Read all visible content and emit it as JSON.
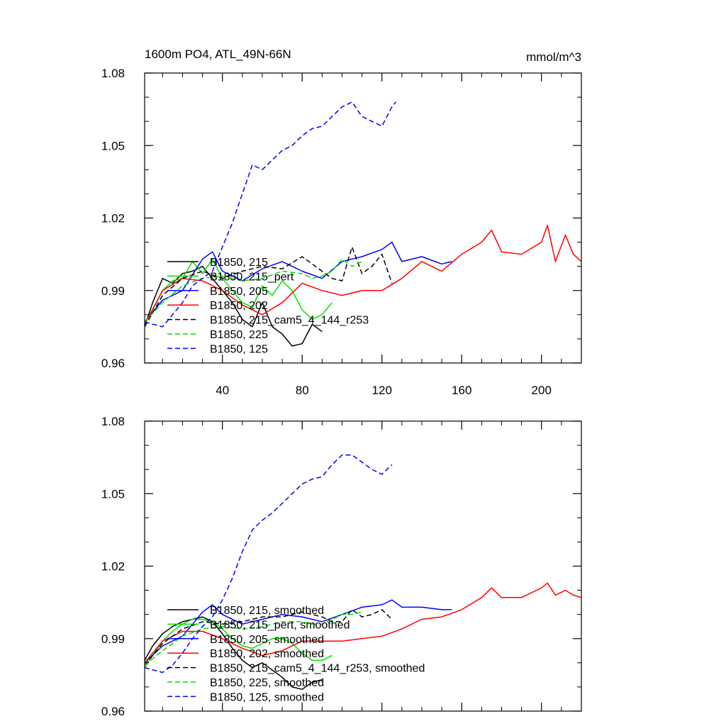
{
  "chart_data": [
    {
      "type": "line",
      "title": "1600m PO4, ATL_49N-66N",
      "units": "mmol/m^3",
      "ylim": [
        0.96,
        1.08
      ],
      "xlim": [
        1,
        220
      ],
      "yticks": [
        0.96,
        0.99,
        1.02,
        1.05,
        1.08
      ],
      "ytick_labels": [
        "0.96",
        "0.99",
        "1.02",
        "1.05",
        "1.08"
      ],
      "xticks": [
        40,
        80,
        120,
        160,
        200
      ],
      "xtick_labels": [
        "40",
        "80",
        "120",
        "160",
        "200"
      ],
      "legend_position": "lower-left",
      "series": [
        {
          "name": "B1850, 215",
          "color": "#000000",
          "dash": "solid",
          "x": [
            1,
            5,
            10,
            15,
            20,
            25,
            30,
            35,
            40,
            45,
            50,
            55,
            60,
            65,
            70,
            75,
            80,
            85,
            90
          ],
          "y": [
            0.975,
            0.985,
            0.995,
            0.993,
            0.997,
            0.998,
            1.0,
            0.995,
            0.99,
            0.985,
            0.978,
            0.975,
            0.985,
            0.975,
            0.972,
            0.967,
            0.968,
            0.976,
            0.973
          ]
        },
        {
          "name": "B1850, 215_pert",
          "color": "#00e000",
          "dash": "solid",
          "x": [
            1,
            5,
            10,
            15,
            20,
            25,
            30,
            35,
            40,
            45,
            50,
            55,
            60,
            65,
            70,
            75,
            80,
            85,
            90,
            95
          ],
          "y": [
            0.976,
            0.982,
            0.99,
            0.994,
            0.995,
            1.002,
            0.997,
            1.003,
            0.995,
            0.99,
            0.985,
            0.983,
            0.992,
            0.988,
            0.994,
            0.99,
            0.982,
            0.978,
            0.98,
            0.985
          ]
        },
        {
          "name": "B1850, 205",
          "color": "#0000ff",
          "dash": "solid",
          "x": [
            1,
            10,
            20,
            30,
            35,
            40,
            50,
            60,
            70,
            80,
            90,
            100,
            110,
            120,
            125,
            130,
            140,
            150,
            155
          ],
          "y": [
            0.977,
            0.986,
            0.99,
            1.003,
            1.006,
            0.998,
            0.994,
            0.999,
            1.002,
            0.998,
            0.995,
            1.002,
            1.004,
            1.007,
            1.01,
            1.002,
            1.004,
            1.001,
            1.002
          ]
        },
        {
          "name": "B1850, 202",
          "color": "#ff0000",
          "dash": "solid",
          "x": [
            1,
            10,
            20,
            30,
            40,
            50,
            60,
            70,
            80,
            90,
            100,
            110,
            120,
            130,
            140,
            150,
            160,
            170,
            175,
            180,
            190,
            200,
            203,
            207,
            212,
            216,
            220
          ],
          "y": [
            0.976,
            0.99,
            0.995,
            0.994,
            0.99,
            0.984,
            0.98,
            0.985,
            0.993,
            0.99,
            0.988,
            0.99,
            0.99,
            0.995,
            1.002,
            0.998,
            1.005,
            1.01,
            1.015,
            1.006,
            1.005,
            1.01,
            1.017,
            1.002,
            1.013,
            1.005,
            1.002
          ]
        },
        {
          "name": "B1850, 215_cam5_4_144_r253",
          "color": "#000000",
          "dash": "dashed",
          "x": [
            1,
            10,
            20,
            30,
            40,
            50,
            60,
            70,
            80,
            90,
            95,
            100,
            105,
            110,
            115,
            120,
            125
          ],
          "y": [
            0.975,
            0.988,
            0.995,
            0.998,
            0.995,
            0.998,
            1.0,
            0.999,
            1.004,
            0.998,
            0.995,
            0.994,
            1.008,
            0.997,
            1.0,
            1.005,
            0.993
          ]
        },
        {
          "name": "B1850, 225",
          "color": "#00e000",
          "dash": "dashed",
          "x": [
            1,
            10,
            20,
            30,
            40,
            50,
            60,
            70,
            80,
            85,
            90,
            95,
            100,
            105,
            110
          ],
          "y": [
            0.977,
            0.985,
            0.992,
            0.995,
            0.996,
            0.994,
            0.995,
            0.998,
            0.997,
            0.995,
            0.996,
            0.998,
            1.003,
            1.0,
            1.002
          ]
        },
        {
          "name": "B1850, 125",
          "color": "#0000ff",
          "dash": "dashed",
          "x": [
            1,
            10,
            15,
            20,
            25,
            30,
            35,
            40,
            45,
            50,
            55,
            60,
            65,
            70,
            75,
            80,
            85,
            90,
            95,
            100,
            105,
            110,
            115,
            120,
            125,
            127
          ],
          "y": [
            0.977,
            0.975,
            0.98,
            0.985,
            0.992,
            0.995,
            0.998,
            1.008,
            1.018,
            1.03,
            1.042,
            1.04,
            1.044,
            1.048,
            1.05,
            1.054,
            1.057,
            1.058,
            1.062,
            1.066,
            1.068,
            1.062,
            1.06,
            1.058,
            1.066,
            1.068
          ]
        }
      ]
    },
    {
      "type": "line",
      "ylim": [
        0.96,
        1.08
      ],
      "xlim": [
        1,
        220
      ],
      "yticks": [
        0.96,
        0.99,
        1.02,
        1.05,
        1.08
      ],
      "ytick_labels": [
        "0.96",
        "0.99",
        "1.02",
        "1.05",
        "1.08"
      ],
      "xticks": [
        40,
        80,
        120,
        160,
        200
      ],
      "legend_position": "lower-left",
      "series": [
        {
          "name": "B1850, 215, smoothed",
          "color": "#000000",
          "dash": "solid",
          "x": [
            1,
            5,
            10,
            15,
            20,
            25,
            30,
            35,
            40,
            45,
            50,
            55,
            60,
            65,
            70,
            75,
            80,
            85,
            90
          ],
          "y": [
            0.981,
            0.987,
            0.992,
            0.995,
            0.997,
            0.998,
            0.999,
            0.997,
            0.992,
            0.986,
            0.981,
            0.978,
            0.98,
            0.977,
            0.974,
            0.97,
            0.969,
            0.972,
            0.973
          ]
        },
        {
          "name": "B1850, 215_pert, smoothed",
          "color": "#00e000",
          "dash": "solid",
          "x": [
            1,
            5,
            10,
            15,
            20,
            25,
            30,
            35,
            40,
            45,
            50,
            55,
            60,
            65,
            70,
            75,
            80,
            85,
            90,
            95
          ],
          "y": [
            0.978,
            0.983,
            0.989,
            0.993,
            0.996,
            0.998,
            0.998,
            0.997,
            0.994,
            0.99,
            0.987,
            0.986,
            0.988,
            0.99,
            0.99,
            0.988,
            0.984,
            0.981,
            0.981,
            0.983
          ]
        },
        {
          "name": "B1850, 205, smoothed",
          "color": "#0000ff",
          "dash": "solid",
          "x": [
            1,
            10,
            20,
            30,
            35,
            40,
            50,
            60,
            70,
            80,
            90,
            100,
            110,
            120,
            125,
            130,
            140,
            150,
            155
          ],
          "y": [
            0.98,
            0.987,
            0.991,
            1.001,
            1.004,
            1.0,
            0.996,
            0.998,
            1.0,
            0.999,
            0.997,
            1.0,
            1.003,
            1.004,
            1.006,
            1.003,
            1.003,
            1.002,
            1.002
          ]
        },
        {
          "name": "B1850, 202, smoothed",
          "color": "#ff0000",
          "dash": "solid",
          "x": [
            1,
            10,
            20,
            30,
            40,
            50,
            60,
            70,
            80,
            90,
            100,
            110,
            120,
            130,
            140,
            150,
            160,
            170,
            175,
            180,
            190,
            200,
            203,
            207,
            212,
            216,
            220
          ],
          "y": [
            0.98,
            0.989,
            0.993,
            0.993,
            0.99,
            0.986,
            0.983,
            0.985,
            0.989,
            0.989,
            0.989,
            0.99,
            0.991,
            0.994,
            0.998,
            0.999,
            1.002,
            1.007,
            1.011,
            1.007,
            1.007,
            1.011,
            1.013,
            1.008,
            1.01,
            1.008,
            1.007
          ]
        },
        {
          "name": "B1850, 215_cam5_4_144_r253, smoothed",
          "color": "#000000",
          "dash": "dashed",
          "x": [
            1,
            10,
            20,
            30,
            40,
            50,
            60,
            70,
            80,
            90,
            95,
            100,
            105,
            110,
            115,
            120,
            125
          ],
          "y": [
            0.979,
            0.988,
            0.994,
            0.997,
            0.996,
            0.997,
            0.999,
            0.999,
            1.001,
            0.999,
            0.997,
            0.997,
            1.002,
            0.999,
            1.0,
            1.002,
            0.998
          ]
        },
        {
          "name": "B1850, 225, smoothed",
          "color": "#00e000",
          "dash": "dashed",
          "x": [
            1,
            10,
            20,
            30,
            40,
            50,
            60,
            70,
            80,
            85,
            90,
            95,
            100,
            105,
            110
          ],
          "y": [
            0.979,
            0.985,
            0.991,
            0.994,
            0.995,
            0.994,
            0.995,
            0.997,
            0.997,
            0.996,
            0.996,
            0.998,
            1.0,
            1.0,
            1.001
          ]
        },
        {
          "name": "B1850, 125, smoothed",
          "color": "#0000ff",
          "dash": "dashed",
          "x": [
            1,
            10,
            15,
            20,
            25,
            30,
            35,
            40,
            45,
            50,
            55,
            60,
            65,
            70,
            75,
            80,
            85,
            90,
            95,
            100,
            105,
            110,
            115,
            120,
            125
          ],
          "y": [
            0.978,
            0.976,
            0.979,
            0.984,
            0.99,
            0.995,
            0.999,
            1.006,
            1.015,
            1.026,
            1.035,
            1.039,
            1.042,
            1.046,
            1.05,
            1.054,
            1.056,
            1.057,
            1.062,
            1.066,
            1.066,
            1.063,
            1.06,
            1.058,
            1.062
          ]
        }
      ]
    }
  ]
}
